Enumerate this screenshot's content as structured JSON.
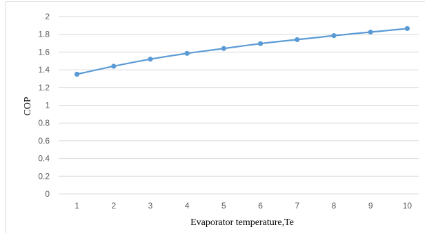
{
  "chart_data": {
    "type": "line",
    "title": "",
    "xlabel": "Evaporator temperature,Te",
    "ylabel": "COP",
    "x": [
      1,
      2,
      3,
      4,
      5,
      6,
      7,
      8,
      9,
      10
    ],
    "categories": [
      "1",
      "2",
      "3",
      "4",
      "5",
      "6",
      "7",
      "8",
      "9",
      "10"
    ],
    "series": [
      {
        "values": [
          1.35,
          1.44,
          1.52,
          1.585,
          1.64,
          1.695,
          1.74,
          1.785,
          1.825,
          1.865
        ]
      }
    ],
    "ylim": [
      0,
      2
    ],
    "yticks": [
      0,
      0.2,
      0.4,
      0.6,
      0.8,
      1,
      1.2,
      1.4,
      1.6,
      1.8,
      2
    ],
    "ytick_labels": [
      "0",
      "0.2",
      "0.4",
      "0.6",
      "0.8",
      "1",
      "1.2",
      "1.4",
      "1.6",
      "1.8",
      "2"
    ],
    "grid": true,
    "legend": "none",
    "colors": {
      "series": "#5b9bd5",
      "grid": "#d9d9d9",
      "ticks": "#595959"
    },
    "marker": "circle"
  }
}
